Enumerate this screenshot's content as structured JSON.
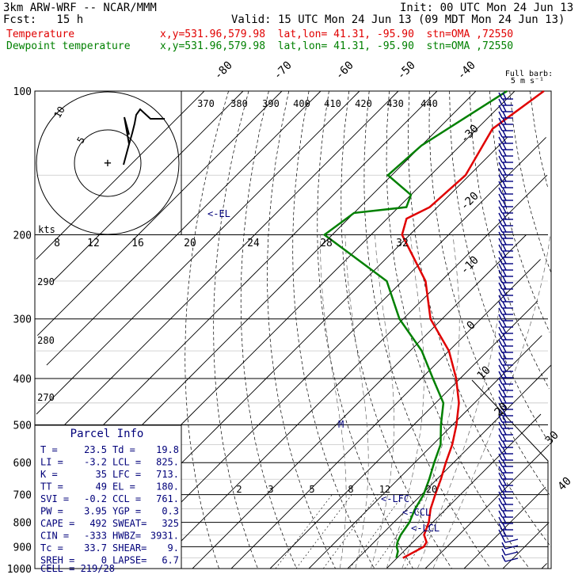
{
  "header": {
    "model": "3km ARW-WRF -- NCAR/MMM",
    "init": "Init: 00 UTC Mon 24 Jun 13",
    "fcst": "Fcst:   15 h",
    "valid": "Valid: 15 UTC Mon 24 Jun 13 (09 MDT Mon 24 Jun 13)"
  },
  "legend": [
    {
      "name": "Temperature",
      "info": "x,y=531.96,579.98  lat,lon= 41.31, -95.90  stn=OMA ,72550",
      "color": "#e00000"
    },
    {
      "name": "Dewpoint temperature",
      "info": "x,y=531.96,579.98  lat,lon= 41.31, -95.90  stn=OMA ,72550",
      "color": "#008000"
    }
  ],
  "barb_note": {
    "line1": "Full barb:",
    "line2": "5 m s⁻¹"
  },
  "hodograph": {
    "rings": [
      "5",
      "10"
    ],
    "units": "kts"
  },
  "parcel_info": {
    "title": "Parcel Info",
    "rows": [
      [
        "T  =",
        "23.5",
        "Td =",
        "19.8"
      ],
      [
        "LI =",
        "-3.2",
        "LCL =",
        "825."
      ],
      [
        "K  =",
        "35",
        "LFC =",
        "713."
      ],
      [
        "TT =",
        "49",
        "EL =",
        "180."
      ],
      [
        "SVI =",
        "-0.2",
        "CCL =",
        "761."
      ],
      [
        "PW =",
        "3.95",
        "YGP =",
        "0.3"
      ],
      [
        "CAPE =",
        "492",
        "SWEAT=",
        "325"
      ],
      [
        "CIN =",
        "-333",
        "HWBZ=",
        "3931."
      ],
      [
        "Tc =",
        "33.7",
        "SHEAR=",
        "9."
      ],
      [
        "SREH =",
        "0",
        "LAPSE=",
        "6.7"
      ]
    ],
    "cell": "CELL = 219/28"
  },
  "markers": {
    "el": "<-EL",
    "lfc": "<-LFC",
    "ccl": "<-CCL",
    "lcl": "<-LCL",
    "mean": "M"
  },
  "chart_data": {
    "type": "line",
    "title": "",
    "xlabel": "",
    "ylabel": "",
    "pressure_levels": [
      100,
      200,
      300,
      400,
      500,
      600,
      700,
      800,
      900,
      1000
    ],
    "isotherm_labels": [
      "-80",
      "-70",
      "-60",
      "-50",
      "-40",
      "-30",
      "-20",
      "-10",
      "0",
      "10",
      "20",
      "30",
      "40"
    ],
    "theta_labels": [
      "370",
      "380",
      "390",
      "400",
      "410",
      "420",
      "430",
      "440"
    ],
    "theta_left_labels": [
      "290",
      "280",
      "270"
    ],
    "hodo_speed_labels": [
      "8",
      "12",
      "16",
      "20",
      "24",
      "28",
      "32"
    ],
    "mixing_ratio_labels": [
      "2",
      "3",
      "5",
      "8",
      "12",
      "20"
    ],
    "series": [
      {
        "name": "Temperature",
        "color": "#e00000",
        "p": [
          100,
          120,
          150,
          175,
          185,
          200,
          250,
          300,
          350,
          400,
          450,
          500,
          550,
          600,
          650,
          700,
          750,
          800,
          850,
          880,
          900,
          920,
          950
        ],
        "t": [
          -62.5,
          -66,
          -61,
          -62,
          -65,
          -62,
          -44,
          -33,
          -20,
          -11,
          -4,
          1,
          5,
          8,
          11,
          13.5,
          16,
          19,
          21,
          23.5,
          24,
          23,
          21.5
        ]
      },
      {
        "name": "Dewpoint temperature",
        "color": "#008000",
        "p": [
          100,
          130,
          150,
          165,
          175,
          180,
          200,
          250,
          300,
          350,
          400,
          450,
          500,
          550,
          600,
          650,
          700,
          750,
          800,
          850,
          880,
          900,
          920,
          950
        ],
        "t": [
          -72,
          -80,
          -81,
          -70,
          -68,
          -80,
          -82,
          -54,
          -41,
          -27,
          -17,
          -8,
          -3,
          2,
          5,
          8,
          10.5,
          12,
          14,
          15,
          16,
          17,
          18.5,
          19.8
        ]
      }
    ],
    "xlim": [
      -40,
      50
    ],
    "ylim": [
      1000,
      100
    ],
    "log_y": true
  }
}
